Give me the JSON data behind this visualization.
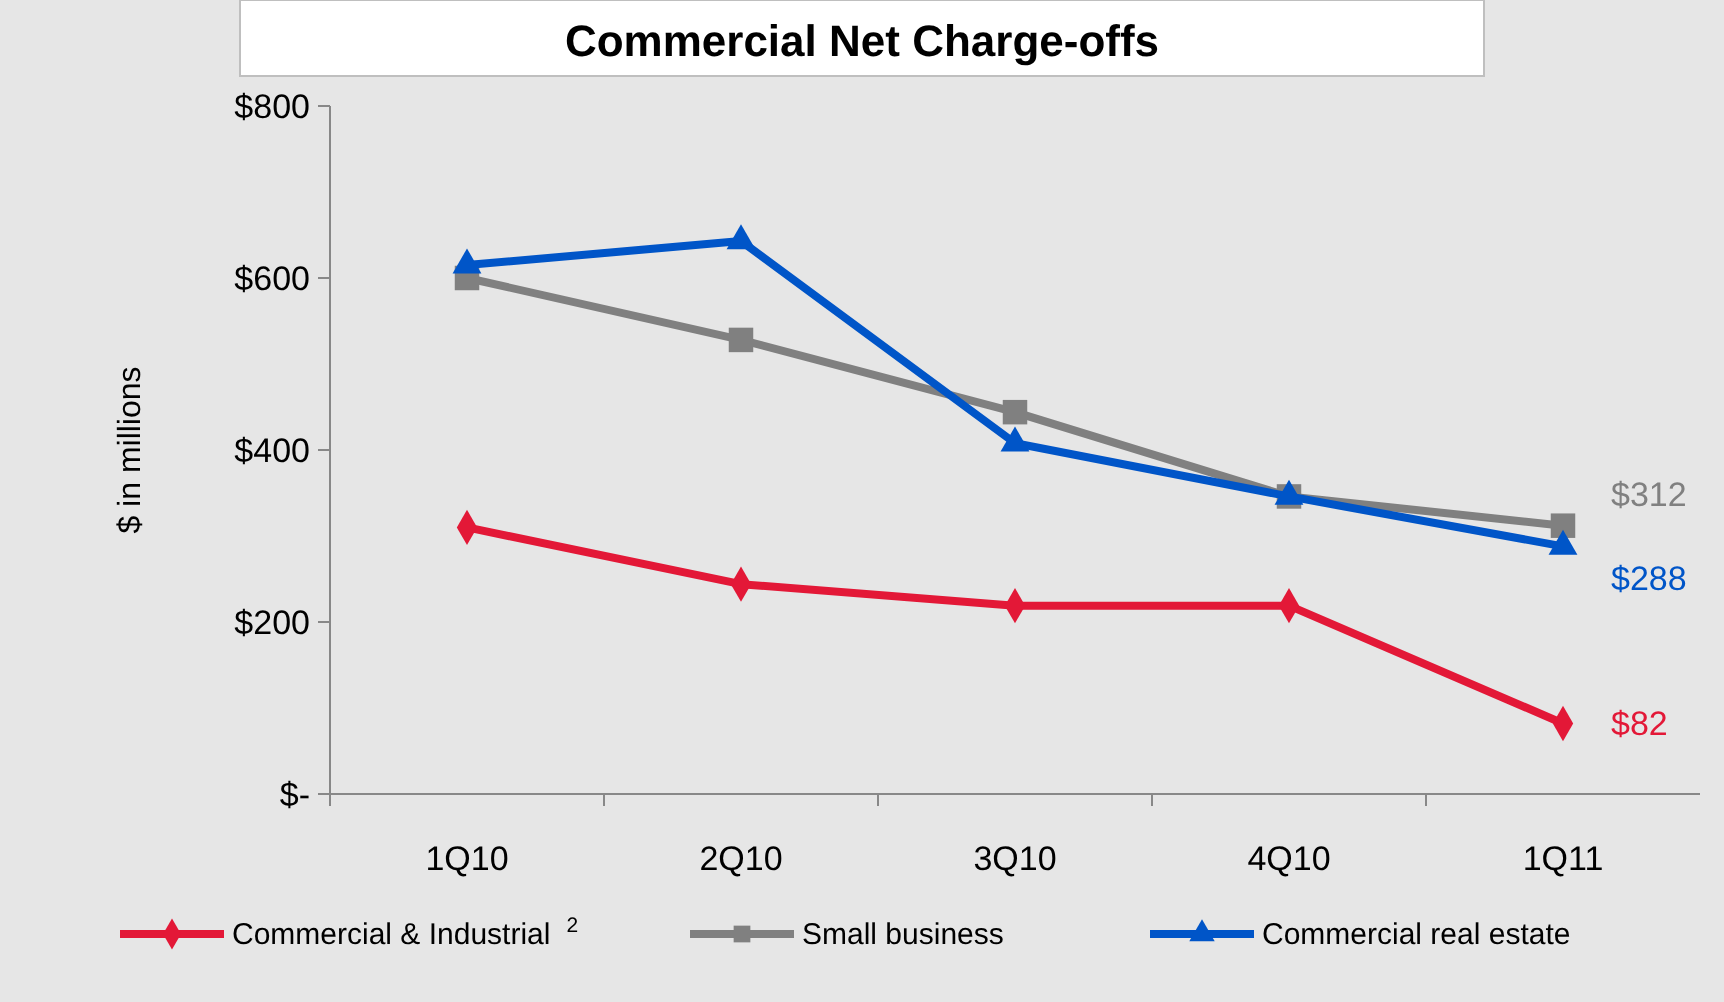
{
  "chart_data": {
    "type": "line",
    "title": "Commercial Net Charge-offs",
    "ylabel": "$ in millions",
    "categories": [
      "1Q10",
      "2Q10",
      "3Q10",
      "4Q10",
      "1Q11"
    ],
    "ylim": [
      0,
      800
    ],
    "yticks": [
      {
        "value": 0,
        "label": "$-"
      },
      {
        "value": 200,
        "label": "$200"
      },
      {
        "value": 400,
        "label": "$400"
      },
      {
        "value": 600,
        "label": "$600"
      },
      {
        "value": 800,
        "label": "$800"
      }
    ],
    "grid": false,
    "legend": "bottom",
    "line_style": "solid",
    "series": [
      {
        "name": "Commercial & Industrial$^{2}$",
        "color": "#e31837",
        "marker": "diamond",
        "values": [
          310,
          244,
          219,
          219,
          82
        ],
        "value_labels": [
          null,
          null,
          null,
          null,
          "$82"
        ]
      },
      {
        "name": "Small business",
        "color": "#808080",
        "marker": "square",
        "values": [
          600,
          528,
          444,
          346,
          312
        ],
        "value_labels": [
          null,
          null,
          null,
          null,
          "$312"
        ]
      },
      {
        "name": "Commercial real estate",
        "color": "#0055c8",
        "marker": "triangle",
        "values": [
          615,
          643,
          408,
          346,
          288
        ],
        "value_labels": [
          null,
          null,
          null,
          null,
          "$288"
        ]
      }
    ]
  }
}
